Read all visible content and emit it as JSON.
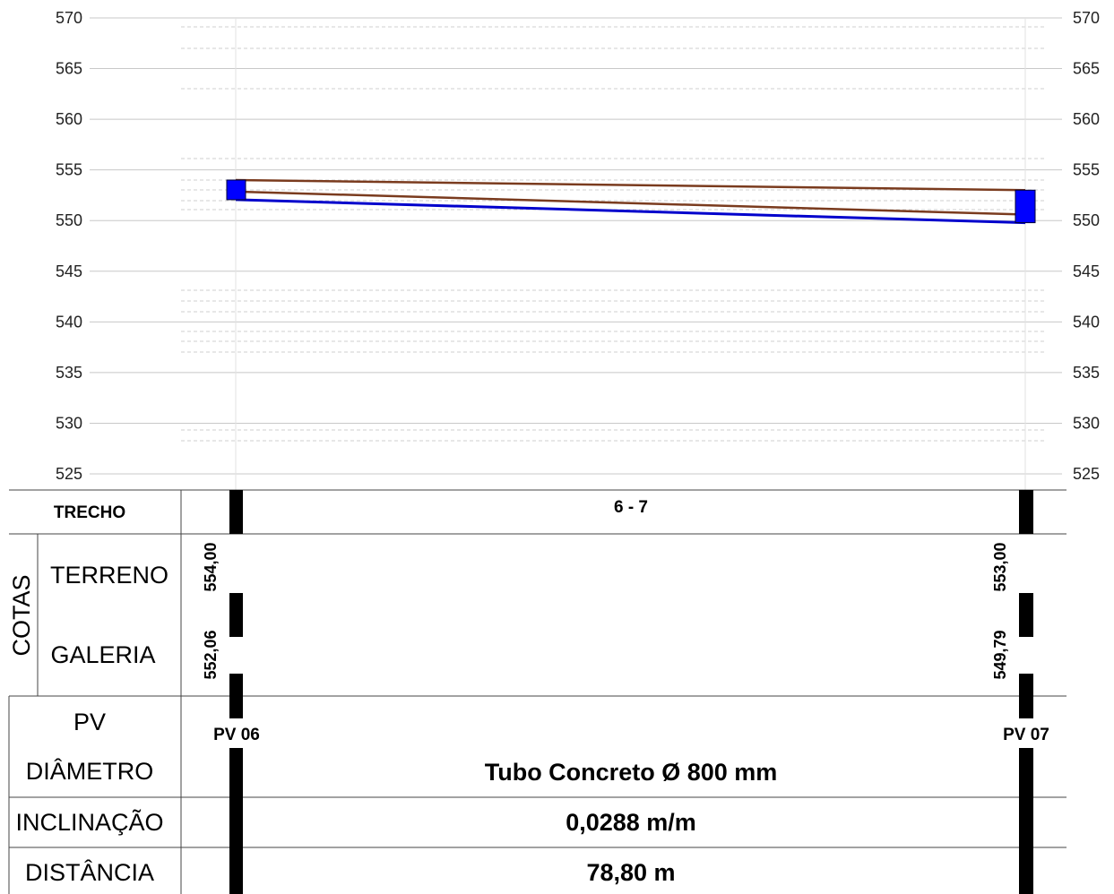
{
  "y_axis": {
    "min": 525,
    "max": 570,
    "ticks": [
      570,
      565,
      560,
      555,
      550,
      545,
      540,
      535,
      530,
      525
    ]
  },
  "terrain": {
    "start": 554.0,
    "end": 553.0,
    "color": "#7a3b1e"
  },
  "gallery": {
    "start": 552.06,
    "end": 549.79,
    "color": "#0000cc",
    "box_color": "#0000ff"
  },
  "table": {
    "trecho_label": "TRECHO",
    "trecho_value": "6 - 7",
    "cotas_label": "COTAS",
    "terreno_label": "TERRENO",
    "galeria_label": "GALERIA",
    "pv_label": "PV",
    "diametro_label": "DIÂMETRO",
    "diametro_value": "Tubo Concreto Ø 800 mm",
    "inclinacao_label": "INCLINAÇÃO",
    "inclinacao_value": "0,0288 m/m",
    "distancia_label": "DISTÂNCIA",
    "distancia_value": "78,80 m"
  },
  "stations": [
    {
      "pv": "PV 06",
      "terreno": "554,00",
      "galeria": "552,06"
    },
    {
      "pv": "PV 07",
      "terreno": "553,00",
      "galeria": "549,79"
    }
  ]
}
